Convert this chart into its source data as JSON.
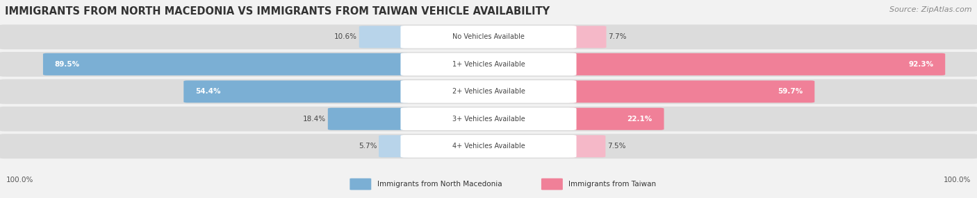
{
  "title": "IMMIGRANTS FROM NORTH MACEDONIA VS IMMIGRANTS FROM TAIWAN VEHICLE AVAILABILITY",
  "source": "Source: ZipAtlas.com",
  "categories": [
    "No Vehicles Available",
    "1+ Vehicles Available",
    "2+ Vehicles Available",
    "3+ Vehicles Available",
    "4+ Vehicles Available"
  ],
  "north_macedonia": [
    10.6,
    89.5,
    54.4,
    18.4,
    5.7
  ],
  "taiwan": [
    7.7,
    92.3,
    59.7,
    22.1,
    7.5
  ],
  "color_macedonia": "#7bafd4",
  "color_taiwan": "#f08098",
  "color_macedonia_light": "#b8d4ea",
  "color_taiwan_light": "#f5b8c8",
  "bg_color": "#f2f2f2",
  "row_bg_light": "#e8e8e8",
  "title_fontsize": 10.5,
  "source_fontsize": 8,
  "legend_label_macedonia": "Immigrants from North Macedonia",
  "legend_label_taiwan": "Immigrants from Taiwan"
}
